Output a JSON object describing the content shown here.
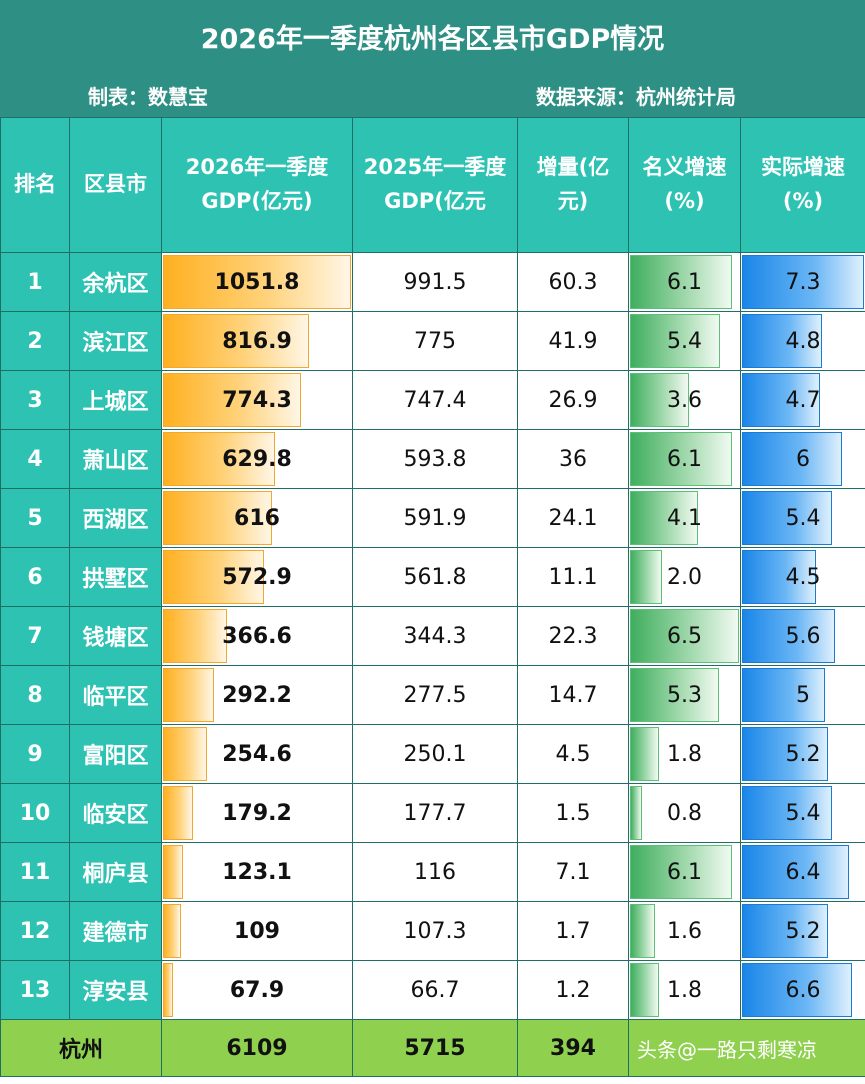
{
  "title": "2026年一季度杭州各区县市GDP情况",
  "maker": "制表：数慧宝",
  "source": "数据来源：杭州统计局",
  "headers": {
    "rank": "排名",
    "district": "区县市",
    "gdp2026_l1": "2026年一季度",
    "gdp2026_l2": "GDP(亿元)",
    "gdp2025_l1": "2025年一季度",
    "gdp2025_l2": "GDP(亿元",
    "increase_l1": "增量(亿",
    "increase_l2": "元)",
    "nominal_l1": "名义增速",
    "nominal_l2": "(%)",
    "real_l1": "实际增速",
    "real_l2": "(%)"
  },
  "rows": [
    {
      "rank": "1",
      "name": "余杭区",
      "gdp2026": "1051.8",
      "gdp2025": "991.5",
      "increase": "60.3",
      "nominal": "6.1",
      "real": "7.3",
      "gdp2026_v": 1051.8,
      "nominal_v": 6.1,
      "real_v": 7.3
    },
    {
      "rank": "2",
      "name": "滨江区",
      "gdp2026": "816.9",
      "gdp2025": "775",
      "increase": "41.9",
      "nominal": "5.4",
      "real": "4.8",
      "gdp2026_v": 816.9,
      "nominal_v": 5.4,
      "real_v": 4.8
    },
    {
      "rank": "3",
      "name": "上城区",
      "gdp2026": "774.3",
      "gdp2025": "747.4",
      "increase": "26.9",
      "nominal": "3.6",
      "real": "4.7",
      "gdp2026_v": 774.3,
      "nominal_v": 3.6,
      "real_v": 4.7
    },
    {
      "rank": "4",
      "name": "萧山区",
      "gdp2026": "629.8",
      "gdp2025": "593.8",
      "increase": "36",
      "nominal": "6.1",
      "real": "6",
      "gdp2026_v": 629.8,
      "nominal_v": 6.1,
      "real_v": 6
    },
    {
      "rank": "5",
      "name": "西湖区",
      "gdp2026": "616",
      "gdp2025": "591.9",
      "increase": "24.1",
      "nominal": "4.1",
      "real": "5.4",
      "gdp2026_v": 616,
      "nominal_v": 4.1,
      "real_v": 5.4
    },
    {
      "rank": "6",
      "name": "拱墅区",
      "gdp2026": "572.9",
      "gdp2025": "561.8",
      "increase": "11.1",
      "nominal": "2.0",
      "real": "4.5",
      "gdp2026_v": 572.9,
      "nominal_v": 2.0,
      "real_v": 4.5
    },
    {
      "rank": "7",
      "name": "钱塘区",
      "gdp2026": "366.6",
      "gdp2025": "344.3",
      "increase": "22.3",
      "nominal": "6.5",
      "real": "5.6",
      "gdp2026_v": 366.6,
      "nominal_v": 6.5,
      "real_v": 5.6
    },
    {
      "rank": "8",
      "name": "临平区",
      "gdp2026": "292.2",
      "gdp2025": "277.5",
      "increase": "14.7",
      "nominal": "5.3",
      "real": "5",
      "gdp2026_v": 292.2,
      "nominal_v": 5.3,
      "real_v": 5
    },
    {
      "rank": "9",
      "name": "富阳区",
      "gdp2026": "254.6",
      "gdp2025": "250.1",
      "increase": "4.5",
      "nominal": "1.8",
      "real": "5.2",
      "gdp2026_v": 254.6,
      "nominal_v": 1.8,
      "real_v": 5.2
    },
    {
      "rank": "10",
      "name": "临安区",
      "gdp2026": "179.2",
      "gdp2025": "177.7",
      "increase": "1.5",
      "nominal": "0.8",
      "real": "5.4",
      "gdp2026_v": 179.2,
      "nominal_v": 0.8,
      "real_v": 5.4
    },
    {
      "rank": "11",
      "name": "桐庐县",
      "gdp2026": "123.1",
      "gdp2025": "116",
      "increase": "7.1",
      "nominal": "6.1",
      "real": "6.4",
      "gdp2026_v": 123.1,
      "nominal_v": 6.1,
      "real_v": 6.4
    },
    {
      "rank": "12",
      "name": "建德市",
      "gdp2026": "109",
      "gdp2025": "107.3",
      "increase": "1.7",
      "nominal": "1.6",
      "real": "5.2",
      "gdp2026_v": 109,
      "nominal_v": 1.6,
      "real_v": 5.2
    },
    {
      "rank": "13",
      "name": "淳安县",
      "gdp2026": "67.9",
      "gdp2025": "66.7",
      "increase": "1.2",
      "nominal": "1.8",
      "real": "6.6",
      "gdp2026_v": 67.9,
      "nominal_v": 1.8,
      "real_v": 6.6
    }
  ],
  "total": {
    "name": "杭州",
    "gdp2026": "6109",
    "gdp2025": "5715",
    "increase": "394"
  },
  "watermark": "头条@一路只剩寒凉",
  "bar_colors": {
    "gdp": "#ffb020",
    "nominal": "#3fae5e",
    "real": "#1a86e8"
  }
}
